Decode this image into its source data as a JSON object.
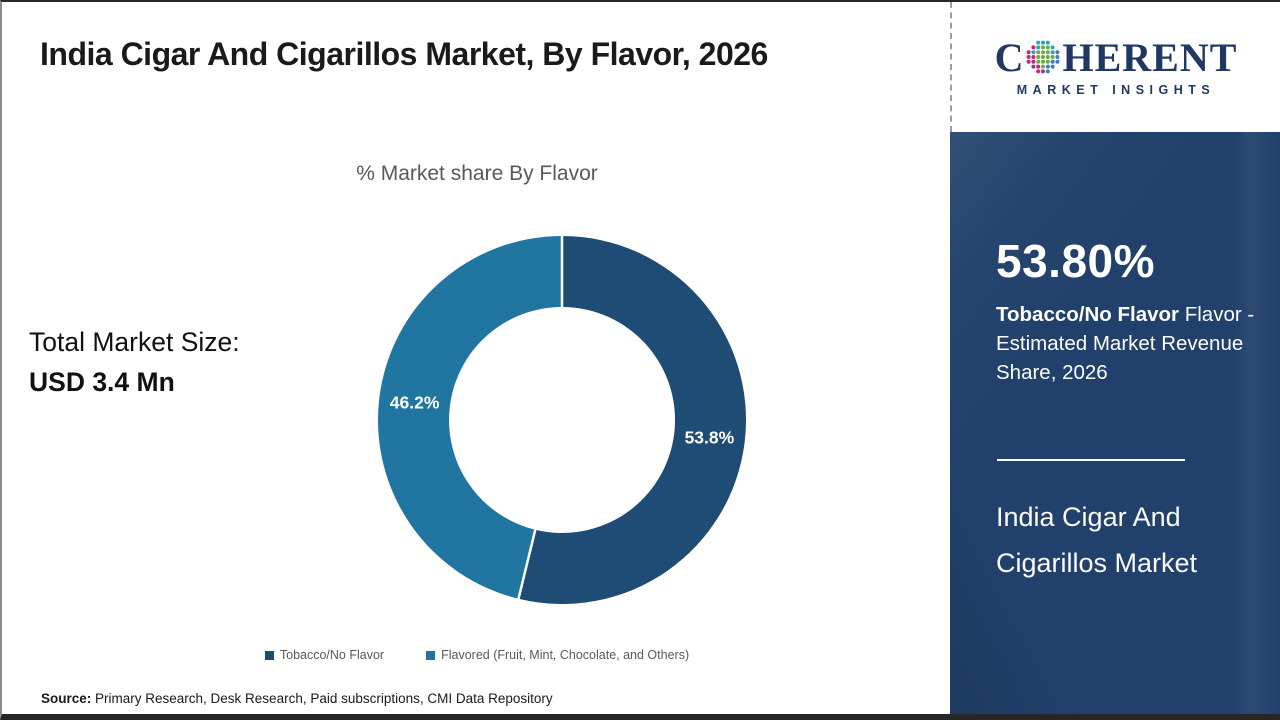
{
  "header": {
    "title": "India Cigar And Cigarillos Market, By Flavor, 2026"
  },
  "logo": {
    "brand_c": "C",
    "brand_rest": "HERENT",
    "subtitle": "MARKET INSIGHTS",
    "globe_icon": "dotted-globe",
    "brand_color": "#1F3864"
  },
  "left_panel": {
    "total_label": "Total Market Size:",
    "total_value": "USD 3.4 Mn"
  },
  "chart_data": {
    "type": "pie",
    "donut": true,
    "title": "% Market share By Flavor",
    "categories": [
      "Tobacco/No Flavor",
      "Flavored (Fruit, Mint, Chocolate, and Others)"
    ],
    "values": [
      53.8,
      46.2
    ],
    "labels": [
      "53.8%",
      "46.2%"
    ],
    "colors": [
      "#1E4C75",
      "#2176A1"
    ],
    "start_angle_deg": 0,
    "direction": "clockwise",
    "legend_position": "bottom"
  },
  "sidebar": {
    "stat_value": "53.80%",
    "stat_bold": "Tobacco/No Flavor",
    "stat_rest": " Flavor - Estimated Market Revenue Share, 2026",
    "market_name_line1": "India Cigar And",
    "market_name_line2": "Cigarillos Market",
    "background_color": "#21406B"
  },
  "footer": {
    "source_label": "Source:",
    "source_text": " Primary Research, Desk Research, Paid subscriptions, CMI Data Repository"
  }
}
